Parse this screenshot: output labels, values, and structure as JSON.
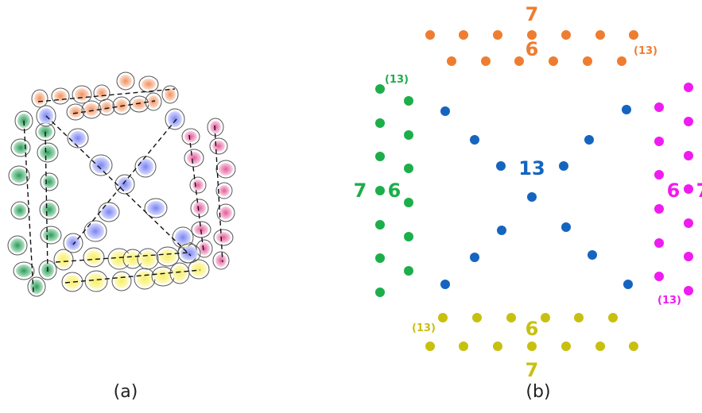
{
  "colors": {
    "orange": "#ee7d31",
    "green": "#1cae4a",
    "blue": "#1565c0",
    "magenta": "#f01bf0",
    "yellow": "#c8c010"
  },
  "panel_a": {
    "caption": "(a)"
  },
  "panel_b": {
    "caption": "(b)",
    "top": {
      "outer_label": "7",
      "inner_label": "6",
      "paren_label": "(13)"
    },
    "left": {
      "outer_label": "7",
      "inner_label": "6",
      "paren_label": "(13)"
    },
    "center": {
      "label": "13"
    },
    "right": {
      "outer_label": "7",
      "inner_label": "6",
      "paren_label": "(13)"
    },
    "bottom": {
      "outer_label": "7",
      "inner_label": "6",
      "paren_label": "(13)"
    }
  }
}
